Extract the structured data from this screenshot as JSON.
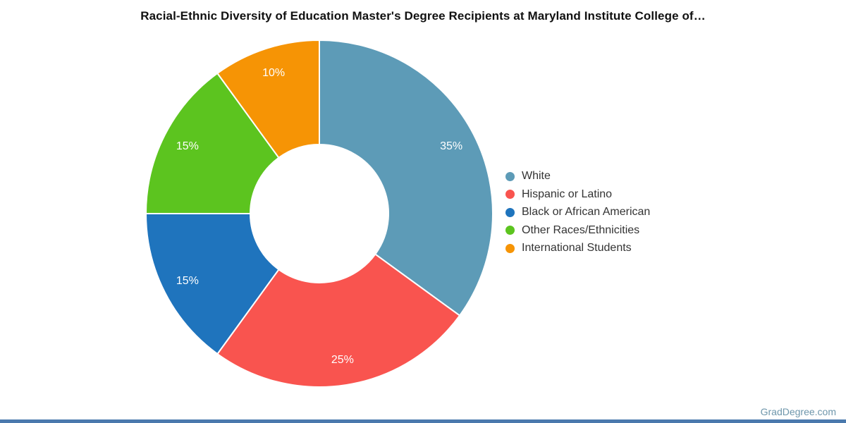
{
  "chart_data": {
    "type": "pie",
    "subtype": "donut",
    "title": "Racial-Ethnic Diversity of Education Master's Degree Recipients at Maryland Institute College of…",
    "categories": [
      "White",
      "Hispanic or Latino",
      "Black or African American",
      "Other Races/Ethnicities",
      "International Students"
    ],
    "values": [
      35,
      25,
      15,
      15,
      10
    ],
    "labels": [
      "35%",
      "25%",
      "15%",
      "15%",
      "10%"
    ],
    "colors": [
      "#5d9bb7",
      "#f9544f",
      "#1f74bd",
      "#5cc41f",
      "#f69405"
    ],
    "label_color": "#ffffff",
    "start_angle": 0,
    "direction": "clockwise",
    "inner_radius_ratio": 0.4,
    "legend_position": "right",
    "slice_border_color": "#ffffff"
  },
  "footer": {
    "watermark": "GradDegree.com",
    "bar_color": "#4a79ad"
  }
}
